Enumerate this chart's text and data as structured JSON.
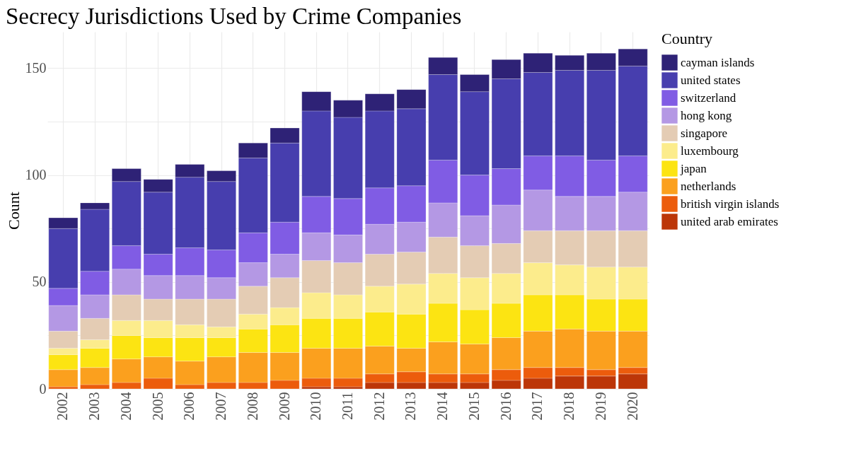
{
  "chart_data": {
    "type": "bar",
    "stacked": true,
    "title": "Secrecy Jurisdictions Used by Crime Companies",
    "ylabel": "Count",
    "legend_title": "Country",
    "legend": "right",
    "grid": true,
    "categories": [
      "2002",
      "2003",
      "2004",
      "2005",
      "2006",
      "2007",
      "2008",
      "2009",
      "2010",
      "2011",
      "2012",
      "2013",
      "2014",
      "2015",
      "2016",
      "2017",
      "2018",
      "2019",
      "2020"
    ],
    "ylim": [
      0,
      167
    ],
    "yticks": [
      0,
      {
        "value": 25,
        "label": null
      },
      50,
      {
        "value": 75,
        "label": null
      },
      100,
      {
        "value": 125,
        "label": null
      },
      150
    ],
    "series": [
      {
        "name": "united arab emirates",
        "color": "#bc3608",
        "values": [
          0,
          0,
          0,
          0,
          0,
          0,
          0,
          0,
          1,
          1,
          3,
          3,
          3,
          3,
          4,
          5,
          6,
          6,
          7
        ]
      },
      {
        "name": "british virgin islands",
        "color": "#ec5c0c",
        "values": [
          1,
          2,
          3,
          5,
          2,
          3,
          3,
          4,
          4,
          4,
          4,
          5,
          4,
          4,
          5,
          5,
          4,
          3,
          3
        ]
      },
      {
        "name": "netherlands",
        "color": "#fba01e",
        "values": [
          8,
          8,
          11,
          10,
          11,
          12,
          14,
          13,
          14,
          14,
          13,
          11,
          15,
          14,
          15,
          17,
          18,
          18,
          17
        ]
      },
      {
        "name": "japan",
        "color": "#fce412",
        "values": [
          7,
          9,
          11,
          9,
          11,
          9,
          11,
          13,
          14,
          14,
          16,
          16,
          18,
          16,
          16,
          17,
          16,
          15,
          15
        ]
      },
      {
        "name": "luxembourg",
        "color": "#fcec8c",
        "values": [
          3,
          4,
          7,
          8,
          6,
          5,
          7,
          8,
          12,
          11,
          12,
          14,
          14,
          15,
          14,
          15,
          14,
          15,
          15
        ]
      },
      {
        "name": "singapore",
        "color": "#e4ccb4",
        "values": [
          8,
          10,
          12,
          10,
          12,
          13,
          13,
          14,
          15,
          15,
          15,
          15,
          17,
          15,
          14,
          15,
          16,
          17,
          17
        ]
      },
      {
        "name": "hong kong",
        "color": "#b498e4",
        "values": [
          12,
          11,
          12,
          11,
          11,
          10,
          11,
          11,
          13,
          13,
          14,
          14,
          16,
          14,
          18,
          19,
          16,
          16,
          18
        ]
      },
      {
        "name": "switzerland",
        "color": "#805ce4",
        "values": [
          8,
          11,
          11,
          10,
          13,
          13,
          14,
          15,
          17,
          17,
          17,
          17,
          20,
          19,
          17,
          16,
          19,
          17,
          17
        ]
      },
      {
        "name": "united states",
        "color": "#473eae",
        "values": [
          28,
          29,
          30,
          29,
          33,
          32,
          35,
          37,
          40,
          38,
          36,
          36,
          40,
          39,
          42,
          39,
          40,
          42,
          42
        ]
      },
      {
        "name": "cayman islands",
        "color": "#2e2276",
        "values": [
          5,
          3,
          6,
          6,
          6,
          5,
          7,
          7,
          9,
          8,
          8,
          9,
          8,
          8,
          9,
          9,
          7,
          8,
          8
        ]
      }
    ]
  }
}
